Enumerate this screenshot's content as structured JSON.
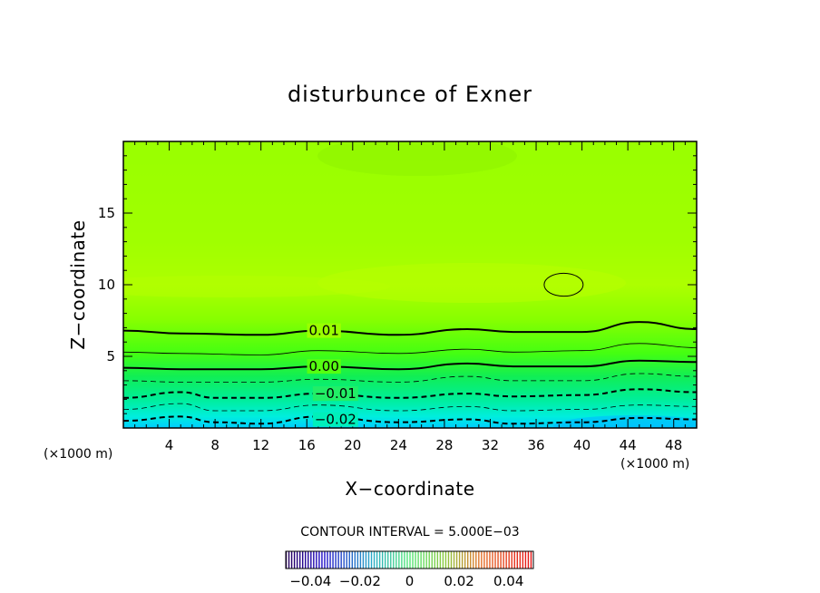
{
  "chart_data": {
    "type": "contour",
    "title": "disturbunce of Exner",
    "xlabel": "X−coordinate",
    "ylabel": "Z−coordinate",
    "x_unit_left": "(×1000 m)",
    "x_unit_right": "(×1000 m)",
    "xlim": [
      0,
      50
    ],
    "ylim": [
      0,
      20
    ],
    "xticks": [
      4,
      8,
      12,
      16,
      20,
      24,
      28,
      32,
      36,
      40,
      44,
      48
    ],
    "yticks": [
      5,
      10,
      15
    ],
    "contour_interval_text": "CONTOUR INTERVAL = 5.000E−03",
    "contour_interval": 0.005,
    "contour_labels": [
      {
        "text": "0.01",
        "value": 0.01,
        "x": 17.5,
        "z": 6.8
      },
      {
        "text": "0.00",
        "value": 0.0,
        "x": 17.5,
        "z": 4.3
      },
      {
        "text": "−0.01",
        "value": -0.01,
        "x": 18.5,
        "z": 2.4
      },
      {
        "text": "−0.02",
        "value": -0.02,
        "x": 18.5,
        "z": 0.6
      }
    ],
    "contour_lines": [
      {
        "value": 0.01,
        "style": "solid-thick",
        "points": [
          [
            0,
            6.8
          ],
          [
            5,
            6.6
          ],
          [
            12,
            6.5
          ],
          [
            17,
            6.8
          ],
          [
            24,
            6.5
          ],
          [
            30,
            6.9
          ],
          [
            34,
            6.7
          ],
          [
            40,
            6.7
          ],
          [
            45,
            7.4
          ],
          [
            50,
            6.9
          ]
        ]
      },
      {
        "value": 0.005,
        "style": "solid-thin",
        "points": [
          [
            0,
            5.3
          ],
          [
            5,
            5.2
          ],
          [
            12,
            5.1
          ],
          [
            17,
            5.4
          ],
          [
            24,
            5.2
          ],
          [
            30,
            5.5
          ],
          [
            34,
            5.3
          ],
          [
            40,
            5.4
          ],
          [
            45,
            5.9
          ],
          [
            50,
            5.6
          ]
        ]
      },
      {
        "value": 0.0,
        "style": "solid-thick",
        "points": [
          [
            0,
            4.2
          ],
          [
            5,
            4.1
          ],
          [
            12,
            4.1
          ],
          [
            17,
            4.3
          ],
          [
            24,
            4.1
          ],
          [
            30,
            4.5
          ],
          [
            34,
            4.3
          ],
          [
            40,
            4.3
          ],
          [
            45,
            4.7
          ],
          [
            50,
            4.6
          ]
        ]
      },
      {
        "value": -0.005,
        "style": "dashed-thin",
        "points": [
          [
            0,
            3.3
          ],
          [
            5,
            3.2
          ],
          [
            12,
            3.2
          ],
          [
            17,
            3.4
          ],
          [
            24,
            3.2
          ],
          [
            30,
            3.6
          ],
          [
            34,
            3.3
          ],
          [
            40,
            3.3
          ],
          [
            45,
            3.8
          ],
          [
            50,
            3.6
          ]
        ]
      },
      {
        "value": -0.01,
        "style": "dashed-thick",
        "points": [
          [
            0,
            2.1
          ],
          [
            5,
            2.5
          ],
          [
            8,
            2.1
          ],
          [
            12,
            2.1
          ],
          [
            17,
            2.4
          ],
          [
            24,
            2.1
          ],
          [
            30,
            2.4
          ],
          [
            34,
            2.2
          ],
          [
            40,
            2.3
          ],
          [
            45,
            2.7
          ],
          [
            50,
            2.5
          ]
        ]
      },
      {
        "value": -0.015,
        "style": "dashed-thin",
        "points": [
          [
            0,
            1.3
          ],
          [
            5,
            1.7
          ],
          [
            8,
            1.2
          ],
          [
            12,
            1.2
          ],
          [
            17,
            1.6
          ],
          [
            24,
            1.2
          ],
          [
            30,
            1.5
          ],
          [
            34,
            1.2
          ],
          [
            40,
            1.3
          ],
          [
            45,
            1.6
          ],
          [
            50,
            1.5
          ]
        ]
      },
      {
        "value": -0.02,
        "style": "dashed-thick",
        "points": [
          [
            0,
            0.5
          ],
          [
            5,
            0.8
          ],
          [
            8,
            0.4
          ],
          [
            12,
            0.3
          ],
          [
            17,
            0.8
          ],
          [
            24,
            0.4
          ],
          [
            30,
            0.6
          ],
          [
            34,
            0.3
          ],
          [
            40,
            0.4
          ],
          [
            45,
            0.7
          ],
          [
            50,
            0.6
          ]
        ]
      }
    ],
    "closed_contours": [
      {
        "value": 0.015,
        "center_x": 38.4,
        "center_z": 10.0,
        "half_width_x": 1.7,
        "half_height_z": 0.5
      }
    ],
    "colorbar": {
      "range": [
        -0.05,
        0.05
      ],
      "tick_labels": [
        "−0.04",
        "−0.02",
        "0",
        "0.02",
        "0.04"
      ],
      "tick_values": [
        -0.04,
        -0.02,
        0,
        0.02,
        0.04
      ]
    },
    "colors": {
      "band_top": "#99ff00",
      "band_mid": "#aaff00",
      "band_bottom": "#00dd99",
      "band_base": "#00ccff",
      "line": "#000000"
    }
  }
}
